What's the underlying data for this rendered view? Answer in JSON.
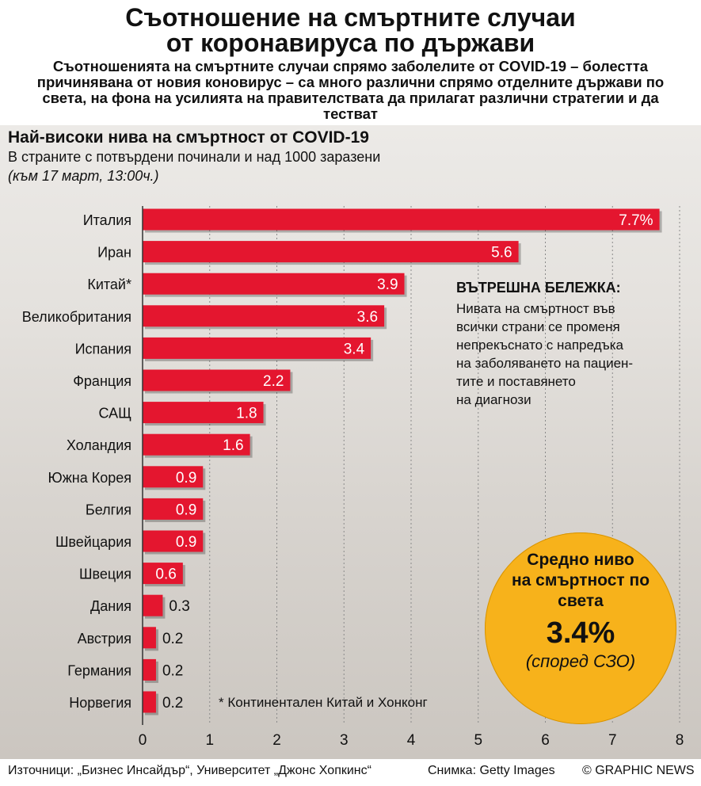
{
  "header": {
    "title_line1": "Съотношение на смъртните случаи",
    "title_line2": "от коронавируса по държави",
    "lead": "Съотношенията на смъртните случаи спрямо заболелите от COVID-19 – болестта причинявана от новия коновирус – са много различни спрямо отделните държави по света, на фона на усилията на правителствата да прилагат различни стратегии и да тестват"
  },
  "chart_data": {
    "type": "bar",
    "orientation": "horizontal",
    "title": "Най-високи нива на смъртност от COVID-19",
    "subtitle": "В страните с потвърдени починали и над 1000 заразени",
    "date_note": "(към 17 март, 13:00ч.)",
    "categories": [
      "Италия",
      "Иран",
      "Китай*",
      "Великобритания",
      "Испания",
      "Франция",
      "САЩ",
      "Холандия",
      "Южна Корея",
      "Белгия",
      "Швейцария",
      "Швеция",
      "Дания",
      "Австрия",
      "Германия",
      "Норвегия"
    ],
    "values": [
      7.7,
      5.6,
      3.9,
      3.6,
      3.4,
      2.2,
      1.8,
      1.6,
      0.9,
      0.9,
      0.9,
      0.6,
      0.3,
      0.2,
      0.2,
      0.2
    ],
    "value_labels": [
      "7.7%",
      "5.6",
      "3.9",
      "3.6",
      "3.4",
      "2.2",
      "1.8",
      "1.6",
      "0.9",
      "0.9",
      "0.9",
      "0.6",
      "0.3",
      "0.2",
      "0.2",
      "0.2"
    ],
    "xlim": [
      0,
      8
    ],
    "x_ticks": [
      "0",
      "1",
      "2",
      "3",
      "4",
      "5",
      "6",
      "7",
      "8"
    ],
    "grid": true,
    "bar_color": "#e4162f"
  },
  "note": {
    "title": "ВЪТРЕШНА БЕЛЕЖКА:",
    "lines": [
      "Нивата на смъртност във",
      "всички страни се променя",
      "непрекъснато с напредъка",
      "на заболяването на пациен-",
      "тите и поставянето",
      "на диагнози"
    ]
  },
  "callout": {
    "line1": "Средно ниво",
    "line2": "на смъртност по",
    "line3": "света",
    "value": "3.4%",
    "source": "(според СЗО)",
    "color": "#f7b21b"
  },
  "footnote": "* Континентален Китай и Хонконг",
  "footer": {
    "sources": "Източници: „Бизнес Инсайдър“, Университет „Джонс Хопкинс“",
    "photo": "Снимка: Getty Images",
    "agency": "© GRAPHIC NEWS"
  }
}
